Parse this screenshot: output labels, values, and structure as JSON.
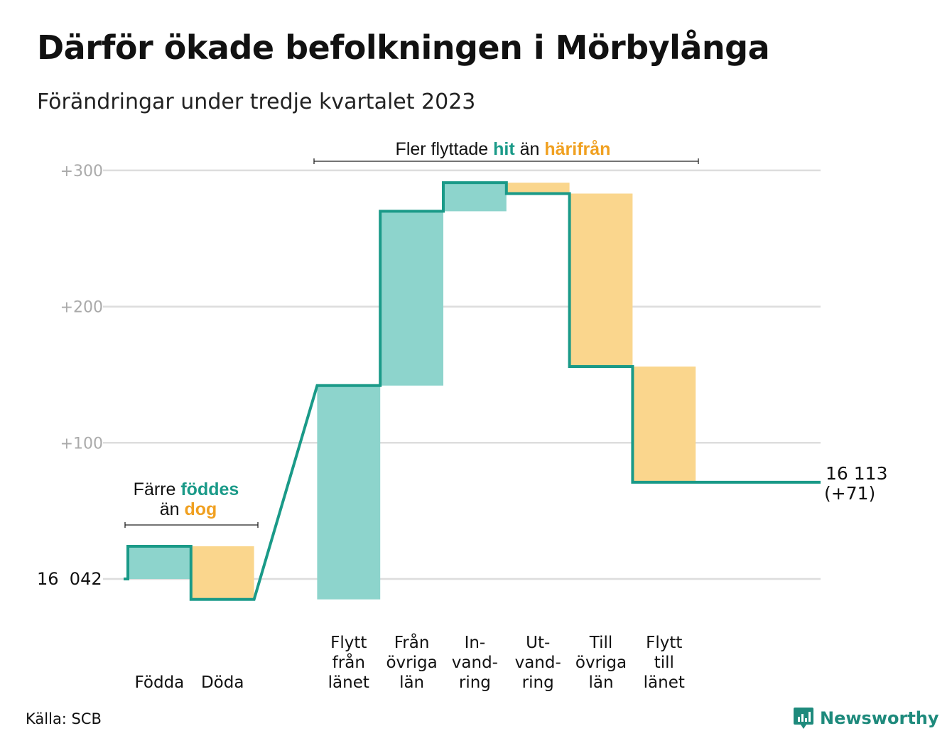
{
  "title": "Därför ökade befolkningen i Mörbylånga",
  "subtitle": "Förändringar under tredje kvartalet 2023",
  "source": "Källa: SCB",
  "brand": "Newsworthy",
  "colors": {
    "increase": "#8dd4cc",
    "decrease": "#fad68d",
    "line": "#1a9a88",
    "increase_text": "#1a9a88",
    "decrease_text": "#f0a020",
    "grid": "#dddddd",
    "tick_text": "#aaaaaa"
  },
  "chart_data": {
    "type": "waterfall",
    "start_value": 16042,
    "start_label": "16  042",
    "end_value": 16113,
    "end_label_line1": "16 113",
    "end_label_line2": "(+71)",
    "y_ticks": [
      {
        "value": 300,
        "label": "+300"
      },
      {
        "value": 200,
        "label": "+200"
      },
      {
        "value": 100,
        "label": "+100"
      }
    ],
    "grid": true,
    "categories": [
      {
        "slot": 0,
        "label_lines": [
          "Födda"
        ],
        "change": 24
      },
      {
        "slot": 1,
        "label_lines": [
          "Döda"
        ],
        "change": -39
      },
      {
        "slot": 3,
        "label_lines": [
          "Flytt",
          "från",
          "länet"
        ],
        "change": 157
      },
      {
        "slot": 4,
        "label_lines": [
          "Från",
          "övriga",
          "län"
        ],
        "change": 128
      },
      {
        "slot": 5,
        "label_lines": [
          "In-",
          "vand-",
          "ring"
        ],
        "change": 21
      },
      {
        "slot": 6,
        "label_lines": [
          "Ut-",
          "vand-",
          "ring"
        ],
        "change": -8
      },
      {
        "slot": 7,
        "label_lines": [
          "Till",
          "övriga",
          "län"
        ],
        "change": -127
      },
      {
        "slot": 8,
        "label_lines": [
          "Flytt",
          "till",
          "länet"
        ],
        "change": -85
      }
    ],
    "annotations": [
      {
        "name": "births-annotation",
        "line1": [
          {
            "text": "Färre ",
            "style": "plain"
          },
          {
            "text": "föddes",
            "style": "increase"
          }
        ],
        "line2": [
          {
            "text": "än ",
            "style": "plain"
          },
          {
            "text": "dog",
            "style": "decrease"
          }
        ]
      },
      {
        "name": "migration-annotation",
        "line1": [
          {
            "text": "Fler flyttade ",
            "style": "plain"
          },
          {
            "text": "hit",
            "style": "increase"
          },
          {
            "text": " än ",
            "style": "plain"
          },
          {
            "text": "härifrån",
            "style": "decrease"
          }
        ]
      }
    ]
  }
}
